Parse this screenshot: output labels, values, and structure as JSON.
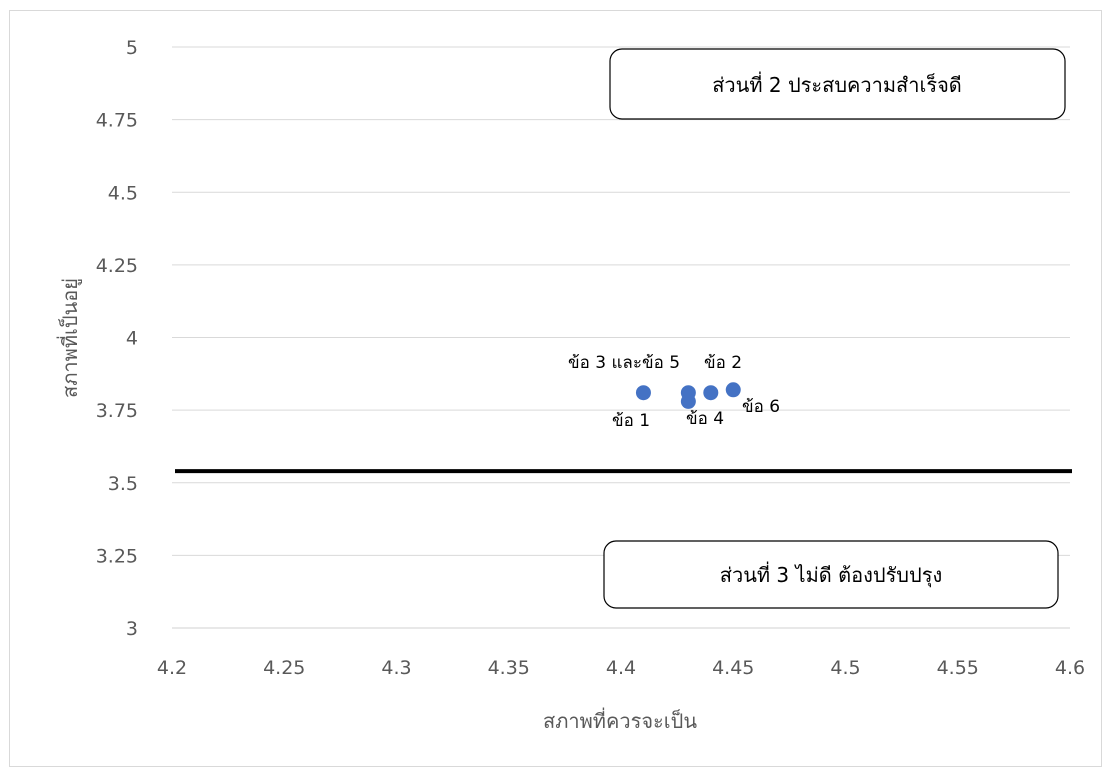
{
  "chart_data": {
    "type": "scatter",
    "title": "",
    "xlabel": "สภาพที่ควรจะเป็น",
    "ylabel": "สภาพที่เป็นอยู่",
    "xlim": [
      4.2,
      4.6
    ],
    "ylim": [
      3,
      5
    ],
    "x_ticks": [
      "4.2",
      "4.25",
      "4.3",
      "4.35",
      "4.4",
      "4.45",
      "4.5",
      "4.55",
      "4.6"
    ],
    "y_ticks": [
      "3",
      "3.25",
      "3.5",
      "3.75",
      "4",
      "4.25",
      "4.5",
      "4.75",
      "5"
    ],
    "grid": "horizontal",
    "points": [
      {
        "x": 4.41,
        "y": 3.81
      },
      {
        "x": 4.43,
        "y": 3.81
      },
      {
        "x": 4.43,
        "y": 3.78
      },
      {
        "x": 4.44,
        "y": 3.81
      },
      {
        "x": 4.45,
        "y": 3.82
      }
    ],
    "point_labels": [
      "ข้อ 3 และข้อ 5",
      "ข้อ 2",
      "ข้อ 1",
      "ข้อ 4",
      "ข้อ 6"
    ],
    "reference_line_y": 3.54,
    "annotations": [
      "ส่วนที่ 2 ประสบความสำเร็จดี",
      "ส่วนที่ 3 ไม่ดี ต้องปรับปรุง"
    ],
    "colors": {
      "point": "#4472C4",
      "grid": "#d9d9d9",
      "reference": "#000000",
      "text": "#595959"
    }
  }
}
